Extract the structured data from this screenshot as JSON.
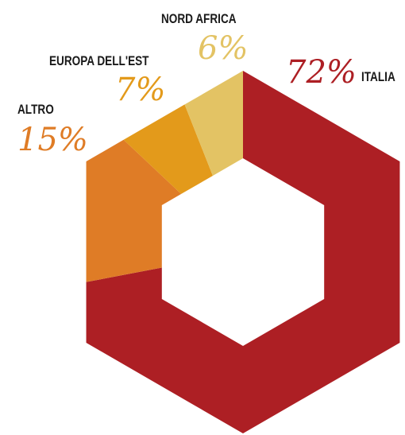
{
  "chart_data": {
    "type": "donut",
    "shape": "hexagon",
    "legend": "none",
    "grid": false,
    "slices": [
      {
        "label": "ITALIA",
        "value": 72,
        "display": "72%",
        "color": "#ad1f24"
      },
      {
        "label": "ALTRO",
        "value": 15,
        "display": "15%",
        "color": "#df7c26"
      },
      {
        "label": "EUROPA DELL'EST",
        "value": 7,
        "display": "7%",
        "color": "#e39a1b"
      },
      {
        "label": "NORD AFRICA",
        "value": 6,
        "display": "6%",
        "color": "#e3c364"
      }
    ]
  }
}
